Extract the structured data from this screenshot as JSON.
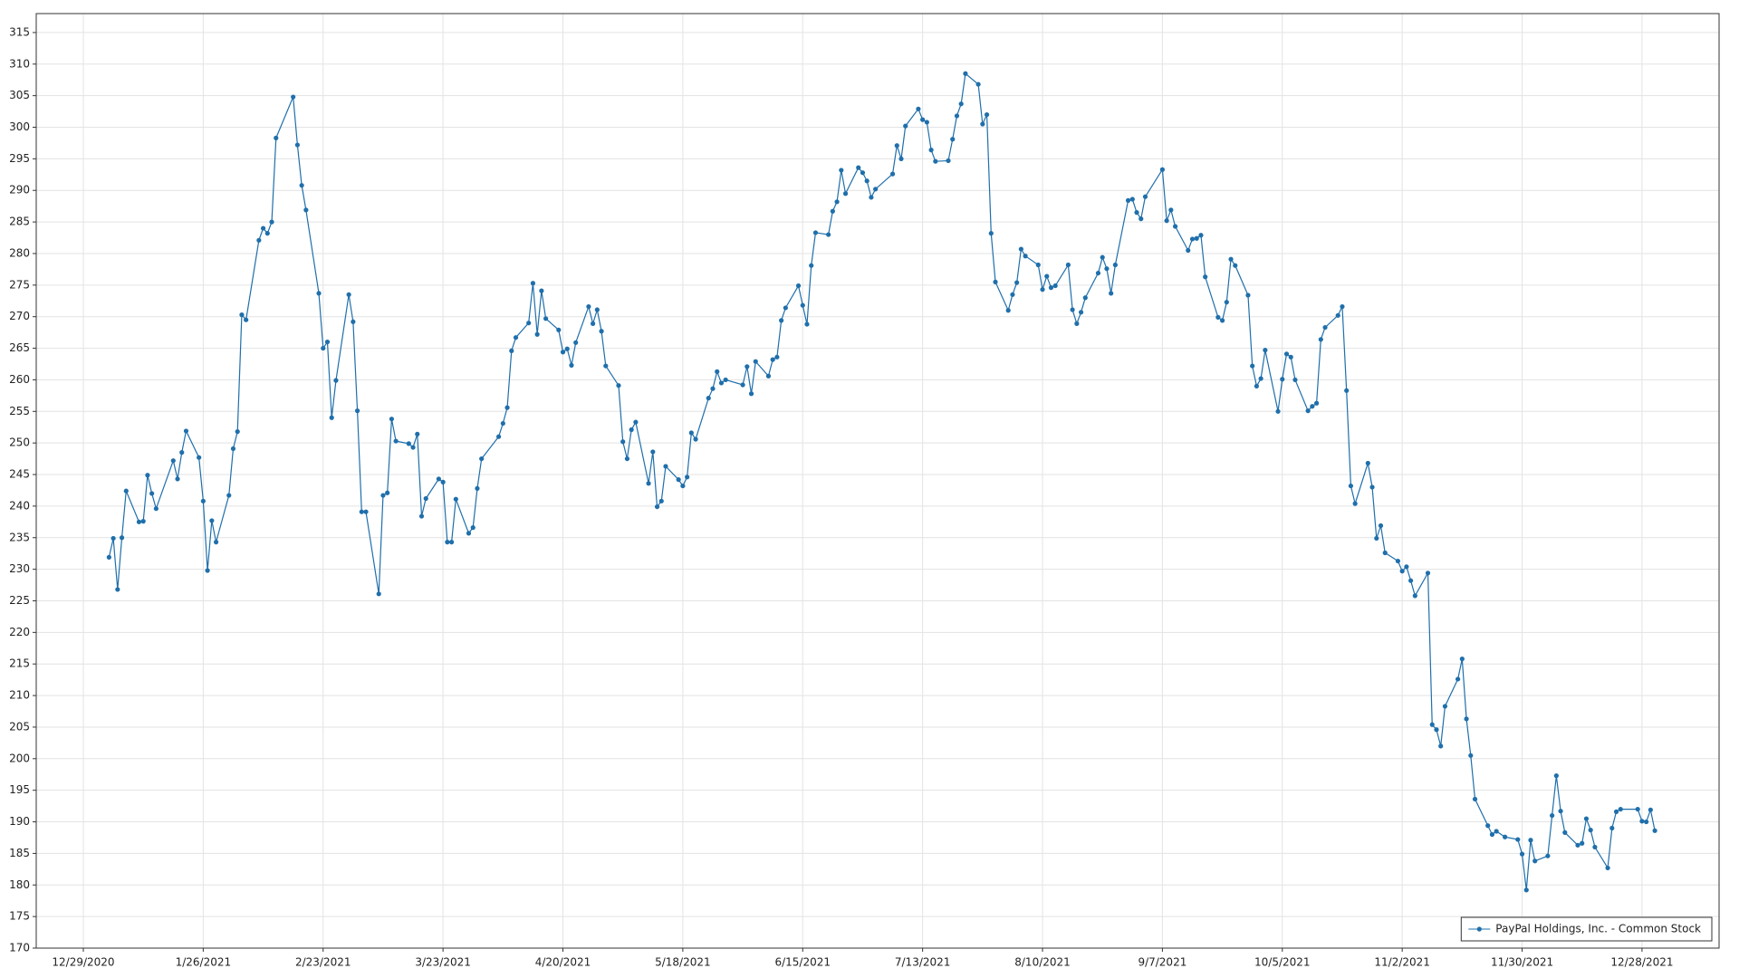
{
  "chart_data": {
    "type": "line",
    "x": [
      "1/4/2021",
      "1/5/2021",
      "1/6/2021",
      "1/7/2021",
      "1/8/2021",
      "1/11/2021",
      "1/12/2021",
      "1/13/2021",
      "1/14/2021",
      "1/15/2021",
      "1/19/2021",
      "1/20/2021",
      "1/21/2021",
      "1/22/2021",
      "1/25/2021",
      "1/26/2021",
      "1/27/2021",
      "1/28/2021",
      "1/29/2021",
      "2/1/2021",
      "2/2/2021",
      "2/3/2021",
      "2/4/2021",
      "2/5/2021",
      "2/8/2021",
      "2/9/2021",
      "2/10/2021",
      "2/11/2021",
      "2/12/2021",
      "2/16/2021",
      "2/17/2021",
      "2/18/2021",
      "2/19/2021",
      "2/22/2021",
      "2/23/2021",
      "2/24/2021",
      "2/25/2021",
      "2/26/2021",
      "3/1/2021",
      "3/2/2021",
      "3/3/2021",
      "3/4/2021",
      "3/5/2021",
      "3/8/2021",
      "3/9/2021",
      "3/10/2021",
      "3/11/2021",
      "3/12/2021",
      "3/15/2021",
      "3/16/2021",
      "3/17/2021",
      "3/18/2021",
      "3/19/2021",
      "3/22/2021",
      "3/23/2021",
      "3/24/2021",
      "3/25/2021",
      "3/26/2021",
      "3/29/2021",
      "3/30/2021",
      "3/31/2021",
      "4/1/2021",
      "4/5/2021",
      "4/6/2021",
      "4/7/2021",
      "4/8/2021",
      "4/9/2021",
      "4/12/2021",
      "4/13/2021",
      "4/14/2021",
      "4/15/2021",
      "4/16/2021",
      "4/19/2021",
      "4/20/2021",
      "4/21/2021",
      "4/22/2021",
      "4/23/2021",
      "4/26/2021",
      "4/27/2021",
      "4/28/2021",
      "4/29/2021",
      "4/30/2021",
      "5/3/2021",
      "5/4/2021",
      "5/5/2021",
      "5/6/2021",
      "5/7/2021",
      "5/10/2021",
      "5/11/2021",
      "5/12/2021",
      "5/13/2021",
      "5/14/2021",
      "5/17/2021",
      "5/18/2021",
      "5/19/2021",
      "5/20/2021",
      "5/21/2021",
      "5/24/2021",
      "5/25/2021",
      "5/26/2021",
      "5/27/2021",
      "5/28/2021",
      "6/1/2021",
      "6/2/2021",
      "6/3/2021",
      "6/4/2021",
      "6/7/2021",
      "6/8/2021",
      "6/9/2021",
      "6/10/2021",
      "6/11/2021",
      "6/14/2021",
      "6/15/2021",
      "6/16/2021",
      "6/17/2021",
      "6/18/2021",
      "6/21/2021",
      "6/22/2021",
      "6/23/2021",
      "6/24/2021",
      "6/25/2021",
      "6/28/2021",
      "6/29/2021",
      "6/30/2021",
      "7/1/2021",
      "7/2/2021",
      "7/6/2021",
      "7/7/2021",
      "7/8/2021",
      "7/9/2021",
      "7/12/2021",
      "7/13/2021",
      "7/14/2021",
      "7/15/2021",
      "7/16/2021",
      "7/19/2021",
      "7/20/2021",
      "7/21/2021",
      "7/22/2021",
      "7/23/2021",
      "7/26/2021",
      "7/27/2021",
      "7/28/2021",
      "7/29/2021",
      "7/30/2021",
      "8/2/2021",
      "8/3/2021",
      "8/4/2021",
      "8/5/2021",
      "8/6/2021",
      "8/9/2021",
      "8/10/2021",
      "8/11/2021",
      "8/12/2021",
      "8/13/2021",
      "8/16/2021",
      "8/17/2021",
      "8/18/2021",
      "8/19/2021",
      "8/20/2021",
      "8/23/2021",
      "8/24/2021",
      "8/25/2021",
      "8/26/2021",
      "8/27/2021",
      "8/30/2021",
      "8/31/2021",
      "9/1/2021",
      "9/2/2021",
      "9/3/2021",
      "9/7/2021",
      "9/8/2021",
      "9/9/2021",
      "9/10/2021",
      "9/13/2021",
      "9/14/2021",
      "9/15/2021",
      "9/16/2021",
      "9/17/2021",
      "9/20/2021",
      "9/21/2021",
      "9/22/2021",
      "9/23/2021",
      "9/24/2021",
      "9/27/2021",
      "9/28/2021",
      "9/29/2021",
      "9/30/2021",
      "10/1/2021",
      "10/4/2021",
      "10/5/2021",
      "10/6/2021",
      "10/7/2021",
      "10/8/2021",
      "10/11/2021",
      "10/12/2021",
      "10/13/2021",
      "10/14/2021",
      "10/15/2021",
      "10/18/2021",
      "10/19/2021",
      "10/20/2021",
      "10/21/2021",
      "10/22/2021",
      "10/25/2021",
      "10/26/2021",
      "10/27/2021",
      "10/28/2021",
      "10/29/2021",
      "11/1/2021",
      "11/2/2021",
      "11/3/2021",
      "11/4/2021",
      "11/5/2021",
      "11/8/2021",
      "11/9/2021",
      "11/10/2021",
      "11/11/2021",
      "11/12/2021",
      "11/15/2021",
      "11/16/2021",
      "11/17/2021",
      "11/18/2021",
      "11/19/2021",
      "11/22/2021",
      "11/23/2021",
      "11/24/2021",
      "11/26/2021",
      "11/29/2021",
      "11/30/2021",
      "12/1/2021",
      "12/2/2021",
      "12/3/2021",
      "12/6/2021",
      "12/7/2021",
      "12/8/2021",
      "12/9/2021",
      "12/10/2021",
      "12/13/2021",
      "12/14/2021",
      "12/15/2021",
      "12/16/2021",
      "12/17/2021",
      "12/20/2021",
      "12/21/2021",
      "12/22/2021",
      "12/23/2021",
      "12/27/2021",
      "12/28/2021",
      "12/29/2021",
      "12/30/2021",
      "12/31/2021"
    ],
    "series": [
      {
        "name": "PayPal Holdings, Inc. - Common Stock",
        "color": "#1f6fab",
        "values": [
          231.9,
          234.9,
          226.8,
          235.0,
          242.4,
          237.5,
          237.6,
          244.9,
          242.0,
          239.6,
          247.2,
          244.3,
          248.5,
          251.9,
          247.7,
          240.8,
          229.8,
          237.7,
          234.3,
          241.7,
          249.1,
          251.8,
          270.3,
          269.5,
          282.1,
          284.0,
          283.2,
          285.0,
          298.3,
          304.8,
          297.2,
          290.8,
          286.9,
          273.7,
          265.0,
          266.0,
          254.0,
          259.9,
          273.5,
          269.2,
          255.1,
          239.1,
          239.1,
          226.1,
          241.7,
          242.1,
          253.8,
          250.3,
          249.9,
          249.3,
          251.4,
          238.4,
          241.2,
          244.3,
          243.8,
          234.3,
          234.3,
          241.1,
          235.7,
          236.6,
          242.8,
          247.5,
          251.0,
          253.1,
          255.6,
          264.6,
          266.7,
          269.0,
          275.3,
          267.2,
          274.1,
          269.7,
          267.9,
          264.4,
          264.9,
          262.3,
          265.9,
          271.6,
          268.9,
          271.1,
          267.7,
          262.2,
          259.1,
          250.2,
          247.5,
          252.1,
          253.3,
          243.6,
          248.6,
          239.9,
          240.8,
          246.3,
          244.2,
          243.2,
          244.6,
          251.6,
          250.6,
          257.1,
          258.6,
          261.3,
          259.5,
          260.0,
          259.2,
          262.1,
          257.8,
          262.9,
          260.6,
          263.2,
          263.6,
          269.4,
          271.4,
          274.9,
          271.8,
          268.8,
          278.1,
          283.3,
          283.0,
          286.7,
          288.2,
          293.2,
          289.5,
          293.6,
          292.8,
          291.5,
          288.9,
          290.2,
          292.6,
          297.1,
          295.0,
          300.2,
          302.9,
          301.2,
          300.8,
          296.4,
          294.6,
          294.7,
          298.1,
          301.8,
          303.7,
          308.5,
          306.8,
          300.5,
          302.0,
          283.2,
          275.5,
          271.0,
          273.5,
          275.4,
          280.7,
          279.6,
          278.2,
          274.3,
          276.4,
          274.6,
          274.9,
          278.2,
          271.1,
          268.9,
          270.7,
          273.0,
          276.9,
          279.4,
          277.6,
          273.7,
          278.2,
          288.4,
          288.6,
          286.5,
          285.5,
          289.0,
          293.3,
          285.2,
          286.9,
          284.3,
          280.5,
          282.3,
          282.4,
          282.9,
          276.3,
          269.9,
          269.4,
          272.3,
          279.1,
          278.1,
          273.4,
          262.2,
          259.0,
          260.2,
          264.7,
          255.0,
          260.1,
          264.1,
          263.6,
          260.0,
          255.1,
          255.8,
          256.3,
          266.4,
          268.3,
          270.2,
          271.6,
          258.3,
          243.2,
          240.4,
          246.8,
          243.0,
          234.9,
          236.9,
          232.6,
          231.3,
          229.7,
          230.4,
          228.2,
          225.8,
          229.4,
          205.4,
          204.6,
          202.0,
          208.3,
          212.6,
          215.8,
          206.3,
          200.5,
          193.6,
          189.4,
          188.0,
          188.5,
          187.6,
          187.2,
          184.9,
          179.2,
          187.1,
          183.8,
          184.6,
          191.0,
          197.3,
          191.7,
          188.3,
          186.3,
          186.6,
          190.5,
          188.7,
          186.0,
          182.7,
          189.0,
          191.6,
          192.0,
          192.0,
          190.1,
          190.0,
          191.9,
          188.6
        ]
      }
    ],
    "xlim": [
      "12/18/2020",
      "1/15/2022"
    ],
    "xticks": [
      "12/29/2020",
      "1/26/2021",
      "2/23/2021",
      "3/23/2021",
      "4/20/2021",
      "5/18/2021",
      "6/15/2021",
      "7/13/2021",
      "8/10/2021",
      "9/7/2021",
      "10/5/2021",
      "11/2/2021",
      "11/30/2021",
      "12/28/2021"
    ],
    "ylim": [
      170,
      318
    ],
    "yticks": [
      170,
      175,
      180,
      185,
      190,
      195,
      200,
      205,
      210,
      215,
      220,
      225,
      230,
      235,
      240,
      245,
      250,
      255,
      260,
      265,
      270,
      275,
      280,
      285,
      290,
      295,
      300,
      305,
      310,
      315
    ],
    "grid": true,
    "legend": "lower right"
  }
}
